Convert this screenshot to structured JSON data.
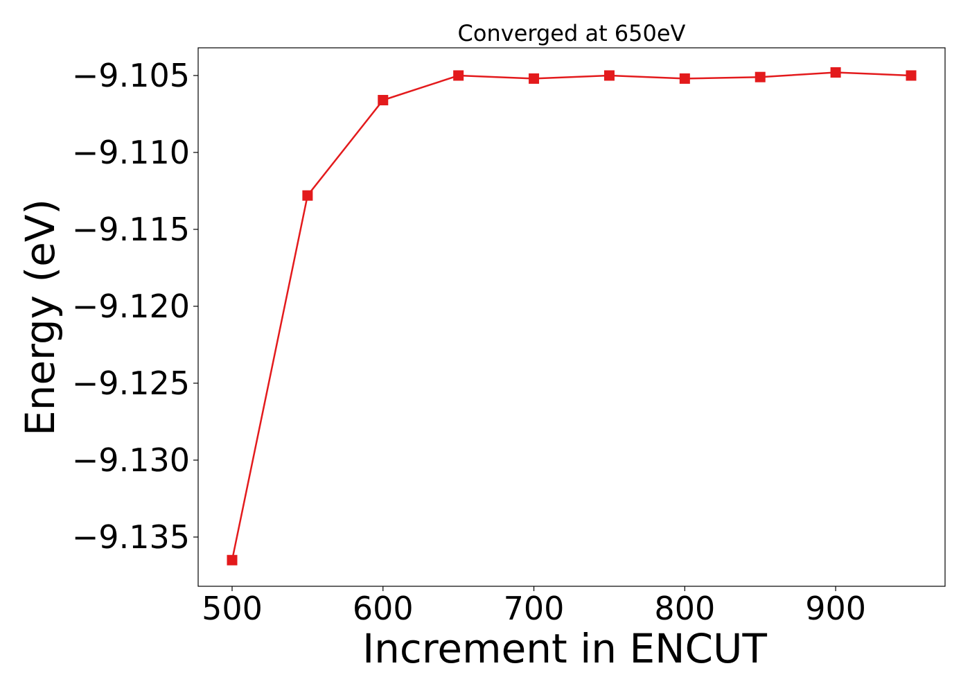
{
  "chart_data": {
    "type": "line",
    "title": "Converged at 650eV",
    "xlabel": "Increment in ENCUT",
    "ylabel": "Energy (eV)",
    "x": [
      500,
      550,
      600,
      650,
      700,
      750,
      800,
      850,
      900,
      950
    ],
    "series": [
      {
        "values": [
          -9.1365,
          -9.1128,
          -9.1066,
          -9.105,
          -9.1052,
          -9.105,
          -9.1052,
          -9.1051,
          -9.1048,
          -9.105
        ],
        "color": "#e31a1c",
        "marker": "square"
      }
    ],
    "xlim": [
      477.5,
      972.5
    ],
    "ylim": [
      -9.1382,
      -9.1032
    ],
    "xticks": [
      500,
      600,
      700,
      800,
      900
    ],
    "yticks": [
      -9.135,
      -9.13,
      -9.125,
      -9.12,
      -9.115,
      -9.11,
      -9.105
    ],
    "xtick_labels": [
      "500",
      "600",
      "700",
      "800",
      "900"
    ],
    "ytick_labels": [
      "−9.135",
      "−9.130",
      "−9.125",
      "−9.120",
      "−9.115",
      "−9.110",
      "−9.105"
    ],
    "grid": false,
    "legend": "none"
  }
}
